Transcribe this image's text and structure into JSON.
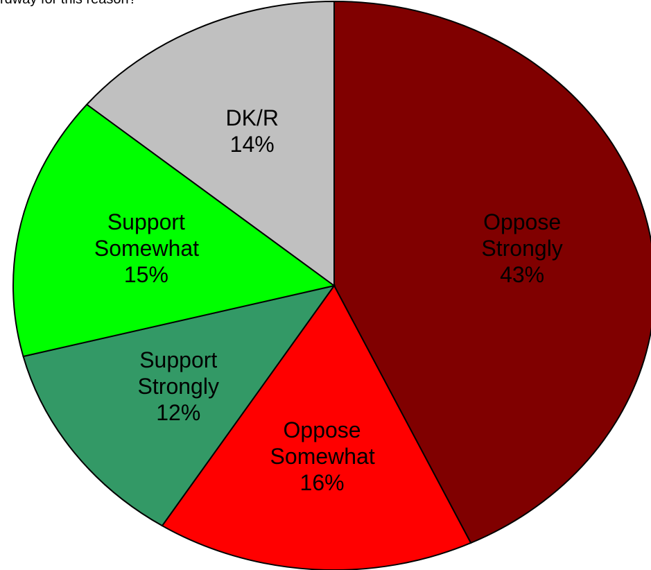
{
  "chart_data": {
    "type": "pie",
    "title": "rdway for this reason?",
    "categories": [
      "Oppose Strongly",
      "Oppose Somewhat",
      "Support Strongly",
      "Support Somewhat",
      "DK/R"
    ],
    "values": [
      43,
      16,
      12,
      15,
      14
    ],
    "value_labels": [
      "43%",
      "16%",
      "12%",
      "15%",
      "14%"
    ],
    "colors": [
      "#800000",
      "#ff0000",
      "#339966",
      "#00ff00",
      "#c0c0c0"
    ]
  }
}
